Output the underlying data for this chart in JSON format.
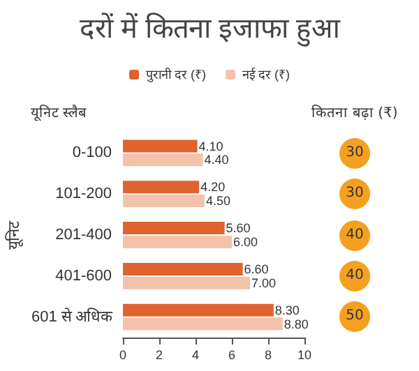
{
  "chart_data": {
    "type": "bar",
    "orientation": "horizontal",
    "title": "दरों में कितना इजाफा हुआ",
    "ylabel": "यूनिट",
    "categories": [
      "0-100",
      "101-200",
      "201-400",
      "401-600",
      "601 से अधिक"
    ],
    "series": [
      {
        "name": "पुरानी दर (₹)",
        "color": "#e0622e",
        "values": [
          4.1,
          4.2,
          5.6,
          6.6,
          8.3
        ],
        "value_labels": [
          "4.10",
          "4.20",
          "5.60",
          "6.60",
          "8.30"
        ]
      },
      {
        "name": "नई दर (₹)",
        "color": "#f2c2aa",
        "values": [
          4.4,
          4.5,
          6.0,
          7.0,
          8.8
        ],
        "value_labels": [
          "4.40",
          "4.50",
          "6.00",
          "7.00",
          "8.80"
        ]
      }
    ],
    "xlim": [
      0,
      10
    ],
    "xticks": [
      0,
      2,
      4,
      6,
      8,
      10
    ],
    "grid": false,
    "legend": "top",
    "annotations": [
      "यूनिट स्लैब",
      "कितना बढ़ा (₹)",
      "30",
      "30",
      "40",
      "40",
      "50"
    ]
  }
}
